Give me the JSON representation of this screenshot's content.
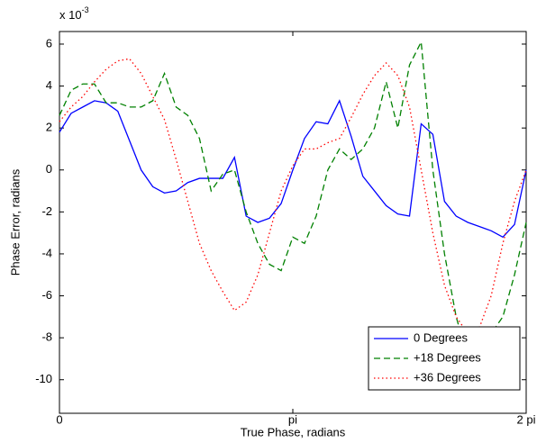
{
  "chart_data": {
    "type": "line",
    "y_multiplier": {
      "base": "x 10",
      "exponent": "-3"
    },
    "x_label": "True Phase, radians",
    "y_label": "Phase Error, radians",
    "x": [
      0,
      0.15708,
      0.31416,
      0.47124,
      0.62832,
      0.7854,
      0.94248,
      1.09956,
      1.25664,
      1.41372,
      1.5708,
      1.72788,
      1.88496,
      2.04204,
      2.19911,
      2.35619,
      2.51327,
      2.67035,
      2.82743,
      2.98451,
      3.14159,
      3.29867,
      3.45575,
      3.61283,
      3.76991,
      3.92699,
      4.08407,
      4.24115,
      4.39823,
      4.55531,
      4.71239,
      4.86947,
      5.02655,
      5.18363,
      5.34071,
      5.49779,
      5.65487,
      5.81195,
      5.96903,
      6.12611,
      6.28319
    ],
    "series": [
      {
        "name": "0 Degrees",
        "color": "#0000ff",
        "linestyle": "solid",
        "values": [
          1.8,
          2.7,
          3.0,
          3.3,
          3.2,
          2.8,
          1.4,
          0.0,
          -0.8,
          -1.1,
          -1.0,
          -0.6,
          -0.4,
          -0.4,
          -0.4,
          0.6,
          -2.2,
          -2.5,
          -2.3,
          -1.6,
          0.0,
          1.5,
          2.3,
          2.2,
          3.3,
          1.6,
          -0.3,
          -1.0,
          -1.7,
          -2.1,
          -2.2,
          2.2,
          1.7,
          -1.5,
          -2.2,
          -2.5,
          -2.7,
          -2.9,
          -3.2,
          -2.6,
          0.0
        ]
      },
      {
        "name": "+18 Degrees",
        "color": "#008000",
        "linestyle": "dashed",
        "values": [
          2.6,
          3.8,
          4.1,
          4.1,
          3.2,
          3.2,
          3.0,
          3.0,
          3.3,
          4.6,
          3.0,
          2.6,
          1.5,
          -1.0,
          -0.2,
          0.0,
          -2.0,
          -3.5,
          -4.5,
          -4.8,
          -3.2,
          -3.5,
          -2.2,
          0.0,
          1.0,
          0.5,
          1.0,
          2.0,
          4.2,
          2.0,
          5.0,
          6.1,
          0.0,
          -4.0,
          -7.0,
          -9.0,
          -8.5,
          -7.8,
          -7.0,
          -5.0,
          -2.5
        ]
      },
      {
        "name": "+36 Degrees",
        "color": "#ff0000",
        "linestyle": "dotted",
        "values": [
          2.3,
          3.0,
          3.5,
          4.2,
          4.8,
          5.2,
          5.3,
          4.6,
          3.5,
          2.4,
          0.5,
          -1.5,
          -3.5,
          -4.8,
          -5.8,
          -6.7,
          -6.3,
          -5.0,
          -3.0,
          -1.0,
          0.2,
          1.0,
          1.0,
          1.3,
          1.5,
          2.5,
          3.6,
          4.5,
          5.1,
          4.5,
          3.0,
          0.0,
          -3.0,
          -5.5,
          -7.0,
          -7.8,
          -7.5,
          -6.0,
          -3.5,
          -1.5,
          0.0
        ]
      }
    ],
    "xlim": [
      0,
      6.28319
    ],
    "xticks": [
      0,
      {
        "value": 3.14159,
        "label": "pi"
      },
      {
        "value": 6.28319,
        "label": "2 pi"
      }
    ],
    "ylim": [
      -11.6,
      6.6
    ],
    "yticks": [
      -10,
      -8,
      -6,
      -4,
      -2,
      0,
      2,
      4,
      6
    ],
    "grid": false,
    "legend": "lower right"
  }
}
